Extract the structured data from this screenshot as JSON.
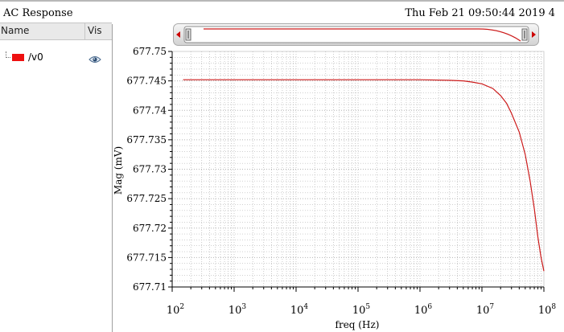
{
  "window": {
    "title": "AC Response",
    "datetime": "Thu Feb 21 09:50:44 2019  4"
  },
  "panel": {
    "col_name": "Name",
    "col_vis": "Vis",
    "signals": [
      {
        "label": "/v0",
        "color": "#ee1010",
        "visible_icon": "eye-icon"
      }
    ]
  },
  "colors": {
    "trace": "#cc1a1a",
    "grid": "#b5b5b5",
    "nav_arrow": "#cc0000"
  },
  "chart_data": {
    "type": "line",
    "xlabel": "freq (Hz)",
    "ylabel": "Mag (mV)",
    "x_scale": "log",
    "xlim": [
      100,
      100000000
    ],
    "ylim": [
      677.71,
      677.75
    ],
    "x_ticks": [
      {
        "value": 100,
        "base": "10",
        "exp": "2"
      },
      {
        "value": 1000,
        "base": "10",
        "exp": "3"
      },
      {
        "value": 10000,
        "base": "10",
        "exp": "4"
      },
      {
        "value": 100000,
        "base": "10",
        "exp": "5"
      },
      {
        "value": 1000000,
        "base": "10",
        "exp": "6"
      },
      {
        "value": 10000000,
        "base": "10",
        "exp": "7"
      },
      {
        "value": 100000000,
        "base": "10",
        "exp": "8"
      }
    ],
    "y_ticks": [
      {
        "value": 677.75,
        "label": "677.75"
      },
      {
        "value": 677.745,
        "label": "677.745"
      },
      {
        "value": 677.74,
        "label": "677.74"
      },
      {
        "value": 677.735,
        "label": "677.735"
      },
      {
        "value": 677.73,
        "label": "677.73"
      },
      {
        "value": 677.725,
        "label": "677.725"
      },
      {
        "value": 677.72,
        "label": "677.72"
      },
      {
        "value": 677.715,
        "label": "677.715"
      },
      {
        "value": 677.71,
        "label": "677.71"
      }
    ],
    "grid": true,
    "series": [
      {
        "name": "/v0",
        "x": [
          150,
          1000,
          10000,
          100000,
          1000000,
          3000000,
          5000000,
          7000000,
          10000000,
          15000000,
          20000000,
          25000000,
          30000000,
          40000000,
          50000000,
          60000000,
          70000000,
          80000000,
          90000000,
          100000000
        ],
        "y": [
          677.7452,
          677.7452,
          677.7452,
          677.7452,
          677.7452,
          677.7451,
          677.745,
          677.7448,
          677.7445,
          677.7437,
          677.7425,
          677.7412,
          677.7395,
          677.7363,
          677.7325,
          677.728,
          677.7233,
          677.7185,
          677.715,
          677.7127
        ]
      }
    ]
  }
}
